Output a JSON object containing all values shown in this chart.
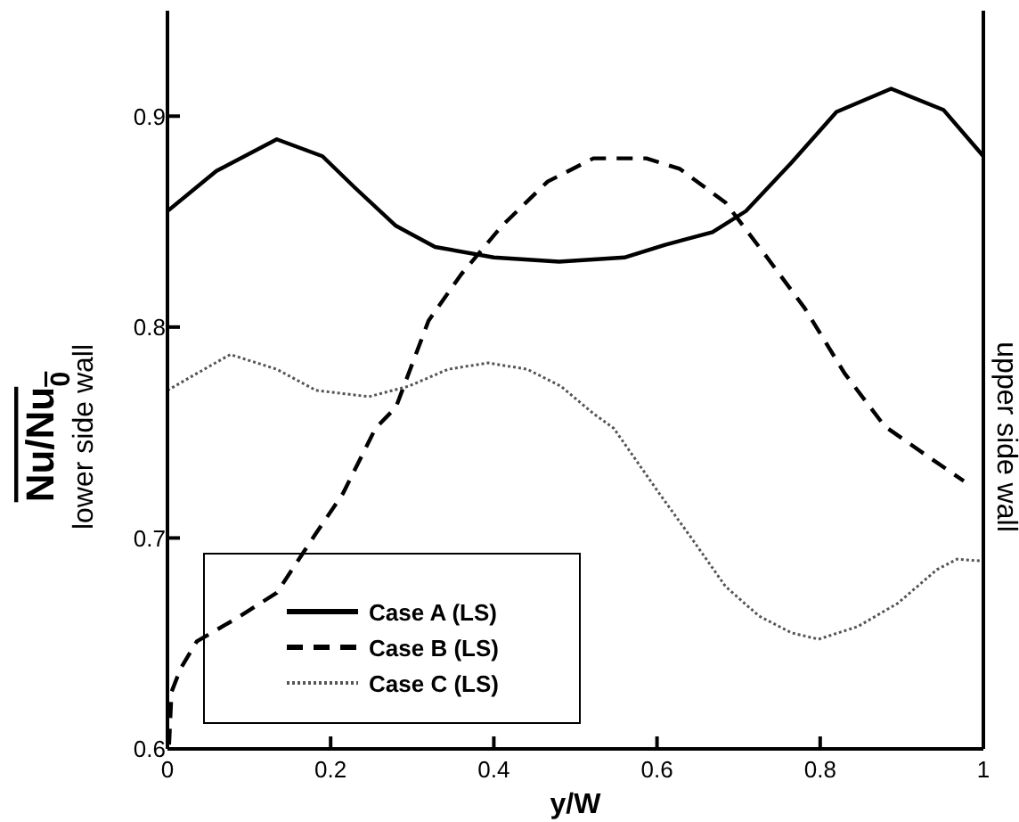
{
  "chart_data": {
    "type": "line",
    "xlabel": "y/W",
    "ylabel": "Nu/Nu$_{0}$",
    "annotations": [
      "lower side wall",
      "upper side wall"
    ],
    "xlim": [
      0,
      1
    ],
    "xticks": [
      0,
      0.2,
      0.4,
      0.6,
      0.8,
      1
    ],
    "ylim": [
      0.6,
      0.95
    ],
    "yticks": [
      0.6,
      0.7,
      0.8,
      0.9
    ],
    "grid": false,
    "legend": "bottom left",
    "marker": "none",
    "series": [
      {
        "name": "Case A (LS)",
        "color": "#000000",
        "line_style": "solid",
        "x": [
          0,
          0.06,
          0.134,
          0.19,
          0.23,
          0.28,
          0.328,
          0.4,
          0.48,
          0.56,
          0.61,
          0.668,
          0.709,
          0.765,
          0.82,
          0.887,
          0.951,
          1
        ],
        "values": [
          0.855,
          0.874,
          0.889,
          0.881,
          0.866,
          0.848,
          0.838,
          0.833,
          0.831,
          0.833,
          0.839,
          0.845,
          0.855,
          0.878,
          0.902,
          0.913,
          0.903,
          0.881
        ]
      },
      {
        "name": "Case B (LS)",
        "color": "#000000",
        "line_style": "dashed",
        "x": [
          0.002,
          0.005,
          0.016,
          0.036,
          0.085,
          0.134,
          0.18,
          0.215,
          0.255,
          0.28,
          0.32,
          0.36,
          0.41,
          0.466,
          0.522,
          0.587,
          0.628,
          0.684,
          0.733,
          0.781,
          0.83,
          0.879,
          0.927,
          0.976
        ],
        "values": [
          0.602,
          0.627,
          0.638,
          0.651,
          0.662,
          0.674,
          0.701,
          0.721,
          0.752,
          0.762,
          0.803,
          0.825,
          0.848,
          0.869,
          0.88,
          0.88,
          0.875,
          0.859,
          0.834,
          0.809,
          0.778,
          0.753,
          0.74,
          0.727
        ]
      },
      {
        "name": "Case C (LS)",
        "color": "#555555",
        "line_style": "dotted",
        "x": [
          0,
          0.036,
          0.077,
          0.134,
          0.182,
          0.247,
          0.296,
          0.344,
          0.393,
          0.441,
          0.482,
          0.522,
          0.547,
          0.603,
          0.644,
          0.684,
          0.725,
          0.765,
          0.798,
          0.846,
          0.895,
          0.943,
          0.968,
          1
        ],
        "values": [
          0.77,
          0.778,
          0.787,
          0.78,
          0.77,
          0.767,
          0.772,
          0.78,
          0.783,
          0.78,
          0.772,
          0.759,
          0.752,
          0.721,
          0.699,
          0.677,
          0.663,
          0.655,
          0.652,
          0.658,
          0.669,
          0.685,
          0.69,
          0.689
        ]
      }
    ]
  }
}
